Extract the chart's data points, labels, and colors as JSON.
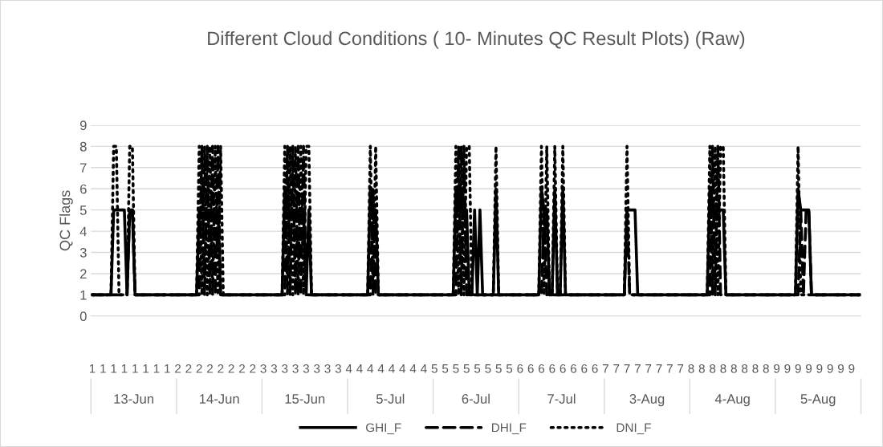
{
  "chart_data": {
    "type": "line",
    "title": "Different Cloud Conditions ( 10- Minutes QC Result Plots) (Raw)",
    "ylabel": "QC Flags",
    "categories": [
      "1",
      null,
      null,
      null,
      "1",
      null,
      null,
      null,
      "1",
      null,
      null,
      null,
      "1",
      null,
      null,
      null,
      "1",
      null,
      null,
      null,
      "1",
      null,
      null,
      null,
      "1",
      null,
      null,
      null,
      "1",
      null,
      null,
      null,
      "2",
      null,
      null,
      null,
      "2",
      null,
      null,
      null,
      "2",
      null,
      null,
      null,
      "2",
      null,
      null,
      null,
      "2",
      null,
      null,
      null,
      "2",
      null,
      null,
      null,
      "2",
      null,
      null,
      null,
      "2",
      null,
      null,
      null,
      "3",
      null,
      null,
      null,
      "3",
      null,
      null,
      null,
      "3",
      null,
      null,
      null,
      "3",
      null,
      null,
      null,
      "3",
      null,
      null,
      null,
      "3",
      null,
      null,
      null,
      "3",
      null,
      null,
      null,
      "3",
      null,
      null,
      null,
      "4",
      null,
      null,
      null,
      "4",
      null,
      null,
      null,
      "4",
      null,
      null,
      null,
      "4",
      null,
      null,
      null,
      "4",
      null,
      null,
      null,
      "4",
      null,
      null,
      null,
      "4",
      null,
      null,
      null,
      "4",
      null,
      null,
      null,
      "5",
      null,
      null,
      null,
      "5",
      null,
      null,
      null,
      "5",
      null,
      null,
      null,
      "5",
      null,
      null,
      null,
      "5",
      null,
      null,
      null,
      "5",
      null,
      null,
      null,
      "5",
      null,
      null,
      null,
      "5",
      null,
      null,
      null,
      "6",
      null,
      null,
      null,
      "6",
      null,
      null,
      null,
      "6",
      null,
      null,
      null,
      "6",
      null,
      null,
      null,
      "6",
      null,
      null,
      null,
      "6",
      null,
      null,
      null,
      "6",
      null,
      null,
      null,
      "6",
      null,
      null,
      null,
      "7",
      null,
      null,
      null,
      "7",
      null,
      null,
      null,
      "7",
      null,
      null,
      null,
      "7",
      null,
      null,
      null,
      "7",
      null,
      null,
      null,
      "7",
      null,
      null,
      null,
      "7",
      null,
      null,
      null,
      "7",
      null,
      null,
      null,
      "8",
      null,
      null,
      null,
      "8",
      null,
      null,
      null,
      "8",
      null,
      null,
      null,
      "8",
      null,
      null,
      null,
      "8",
      null,
      null,
      null,
      "8",
      null,
      null,
      null,
      "8",
      null,
      null,
      null,
      "8",
      null,
      null,
      null,
      "9",
      null,
      null,
      null,
      "9",
      null,
      null,
      null,
      "9",
      null,
      null,
      null,
      "9",
      null,
      null,
      null,
      "9",
      null,
      null,
      null,
      "9",
      null,
      null,
      null,
      "9",
      null,
      null,
      null,
      "9",
      null,
      null,
      null
    ],
    "series": [
      {
        "name": "GHI_F",
        "color": "#000000",
        "line_style": "solid",
        "values": [
          1,
          1,
          1,
          1,
          1,
          1,
          1,
          1,
          5,
          5,
          5,
          5,
          5,
          1,
          5,
          5,
          1,
          1,
          1,
          1,
          1,
          1,
          1,
          1,
          1,
          1,
          1,
          1,
          1,
          1,
          1,
          1,
          1,
          1,
          1,
          1,
          1,
          1,
          1,
          1,
          5,
          5,
          5,
          5,
          5,
          5,
          5,
          5,
          1,
          1,
          1,
          1,
          1,
          1,
          1,
          1,
          1,
          1,
          1,
          1,
          1,
          1,
          1,
          1,
          1,
          1,
          1,
          1,
          1,
          1,
          1,
          1,
          6,
          5,
          5,
          5,
          5,
          5,
          5,
          5,
          1,
          5,
          1,
          1,
          1,
          1,
          1,
          1,
          1,
          1,
          1,
          1,
          1,
          1,
          1,
          1,
          1,
          1,
          1,
          1,
          1,
          1,
          1,
          1,
          6,
          5,
          5,
          1,
          1,
          1,
          1,
          1,
          1,
          1,
          1,
          1,
          1,
          1,
          1,
          1,
          1,
          1,
          1,
          1,
          1,
          1,
          1,
          1,
          1,
          1,
          1,
          1,
          1,
          1,
          1,
          1,
          6,
          5,
          6,
          5,
          5,
          1,
          1,
          5,
          1,
          5,
          1,
          1,
          1,
          1,
          1,
          6,
          1,
          1,
          1,
          1,
          1,
          1,
          1,
          1,
          1,
          1,
          1,
          1,
          1,
          1,
          1,
          1,
          6,
          5,
          5,
          1,
          1,
          6,
          1,
          1,
          6,
          1,
          1,
          1,
          1,
          1,
          1,
          1,
          1,
          1,
          1,
          1,
          1,
          1,
          1,
          1,
          1,
          1,
          1,
          1,
          1,
          1,
          1,
          1,
          5,
          5,
          5,
          5,
          1,
          1,
          1,
          1,
          1,
          1,
          1,
          1,
          1,
          1,
          1,
          1,
          1,
          1,
          1,
          1,
          1,
          1,
          1,
          1,
          1,
          1,
          1,
          1,
          1,
          1,
          1,
          6,
          5,
          5,
          5,
          5,
          5,
          1,
          1,
          1,
          1,
          1,
          1,
          1,
          1,
          1,
          1,
          1,
          1,
          1,
          1,
          1,
          1,
          1,
          1,
          1,
          1,
          1,
          1,
          1,
          1,
          1,
          1,
          1,
          6,
          5,
          5,
          5,
          5,
          1,
          1,
          1,
          1,
          1,
          1,
          1,
          1,
          1,
          1,
          1,
          1,
          1,
          1,
          1,
          1,
          1,
          1,
          1
        ]
      },
      {
        "name": "DHI_F",
        "color": "#000000",
        "line_style": "dashed",
        "values": [
          1,
          1,
          1,
          1,
          1,
          1,
          1,
          1,
          1,
          1,
          1,
          1,
          1,
          1,
          5,
          5,
          1,
          1,
          1,
          1,
          1,
          1,
          1,
          1,
          1,
          1,
          1,
          1,
          1,
          1,
          1,
          1,
          1,
          1,
          1,
          1,
          1,
          1,
          1,
          1,
          1,
          8,
          1,
          8,
          1,
          8,
          1,
          8,
          1,
          1,
          1,
          1,
          1,
          1,
          1,
          1,
          1,
          1,
          1,
          1,
          1,
          1,
          1,
          1,
          1,
          1,
          1,
          1,
          1,
          1,
          1,
          1,
          1,
          8,
          1,
          8,
          1,
          8,
          1,
          8,
          1,
          1,
          1,
          1,
          1,
          1,
          1,
          1,
          1,
          1,
          1,
          1,
          1,
          1,
          1,
          1,
          1,
          1,
          1,
          1,
          1,
          1,
          1,
          1,
          1,
          6,
          1,
          1,
          1,
          1,
          1,
          1,
          1,
          1,
          1,
          1,
          1,
          1,
          1,
          1,
          1,
          1,
          1,
          1,
          1,
          1,
          1,
          1,
          1,
          1,
          1,
          1,
          1,
          1,
          1,
          1,
          1,
          8,
          1,
          8,
          1,
          1,
          1,
          1,
          1,
          1,
          1,
          1,
          1,
          1,
          1,
          1,
          1,
          1,
          1,
          1,
          1,
          1,
          1,
          1,
          1,
          1,
          1,
          1,
          1,
          1,
          1,
          1,
          1,
          5,
          1,
          1,
          1,
          1,
          1,
          1,
          1,
          1,
          1,
          1,
          1,
          1,
          1,
          1,
          1,
          1,
          1,
          1,
          1,
          1,
          1,
          1,
          1,
          1,
          1,
          1,
          1,
          1,
          1,
          1,
          5,
          1,
          1,
          1,
          1,
          1,
          1,
          1,
          1,
          1,
          1,
          1,
          1,
          1,
          1,
          1,
          1,
          1,
          1,
          1,
          1,
          1,
          1,
          1,
          1,
          1,
          1,
          1,
          1,
          1,
          1,
          1,
          8,
          1,
          8,
          1,
          1,
          1,
          1,
          1,
          1,
          1,
          1,
          1,
          1,
          1,
          1,
          1,
          1,
          1,
          1,
          1,
          1,
          1,
          1,
          1,
          1,
          1,
          1,
          1,
          1,
          1,
          1,
          1,
          1,
          5,
          1,
          5,
          5,
          1,
          1,
          1,
          1,
          1,
          1,
          1,
          1,
          1,
          1,
          1,
          1,
          1,
          1,
          1,
          1,
          1,
          1,
          1
        ]
      },
      {
        "name": "DNI_F",
        "color": "#000000",
        "line_style": "dotted",
        "values": [
          1,
          1,
          1,
          1,
          1,
          1,
          1,
          1,
          8,
          8,
          1,
          1,
          1,
          1,
          8,
          8,
          1,
          1,
          1,
          1,
          1,
          1,
          1,
          1,
          1,
          1,
          1,
          1,
          1,
          1,
          1,
          1,
          1,
          1,
          1,
          1,
          1,
          1,
          1,
          1,
          8,
          1,
          8,
          1,
          8,
          1,
          8,
          1,
          8,
          1,
          1,
          1,
          1,
          1,
          1,
          1,
          1,
          1,
          1,
          1,
          1,
          1,
          1,
          1,
          1,
          1,
          1,
          1,
          1,
          1,
          1,
          1,
          8,
          1,
          8,
          1,
          8,
          1,
          8,
          1,
          8,
          8,
          1,
          1,
          1,
          1,
          1,
          1,
          1,
          1,
          1,
          1,
          1,
          1,
          1,
          1,
          1,
          1,
          1,
          1,
          1,
          1,
          1,
          1,
          8,
          1,
          8,
          1,
          1,
          1,
          1,
          1,
          1,
          1,
          1,
          1,
          1,
          1,
          1,
          1,
          1,
          1,
          1,
          1,
          1,
          1,
          1,
          1,
          1,
          1,
          1,
          1,
          1,
          1,
          1,
          1,
          8,
          1,
          8,
          1,
          8,
          8,
          1,
          1,
          1,
          1,
          1,
          1,
          1,
          1,
          1,
          8,
          1,
          1,
          1,
          1,
          1,
          1,
          1,
          1,
          1,
          1,
          1,
          1,
          1,
          1,
          1,
          1,
          8,
          1,
          8,
          1,
          1,
          8,
          1,
          1,
          8,
          1,
          1,
          1,
          1,
          1,
          1,
          1,
          1,
          1,
          1,
          1,
          1,
          1,
          1,
          1,
          1,
          1,
          1,
          1,
          1,
          1,
          1,
          1,
          8,
          1,
          1,
          1,
          1,
          1,
          1,
          1,
          1,
          1,
          1,
          1,
          1,
          1,
          1,
          1,
          1,
          1,
          1,
          1,
          1,
          1,
          1,
          1,
          1,
          1,
          1,
          1,
          1,
          1,
          1,
          8,
          1,
          8,
          1,
          8,
          8,
          1,
          1,
          1,
          1,
          1,
          1,
          1,
          1,
          1,
          1,
          1,
          1,
          1,
          1,
          1,
          1,
          1,
          1,
          1,
          1,
          1,
          1,
          1,
          1,
          1,
          1,
          1,
          8,
          1,
          1,
          1,
          1,
          1,
          1,
          1,
          1,
          1,
          1,
          1,
          1,
          1,
          1,
          1,
          1,
          1,
          1,
          1,
          1,
          1,
          1,
          1
        ]
      }
    ],
    "ylim": [
      0,
      9
    ],
    "yticks": [
      0,
      1,
      2,
      3,
      4,
      5,
      6,
      7,
      8,
      9
    ],
    "grid": "y",
    "legend": "bottom",
    "marker": "none",
    "annotations": [
      "13-Jun",
      "14-Jun",
      "15-Jun",
      "5-Jul",
      "6-Jul",
      "7-Jul",
      "3-Aug",
      "4-Aug",
      "5-Aug"
    ]
  }
}
